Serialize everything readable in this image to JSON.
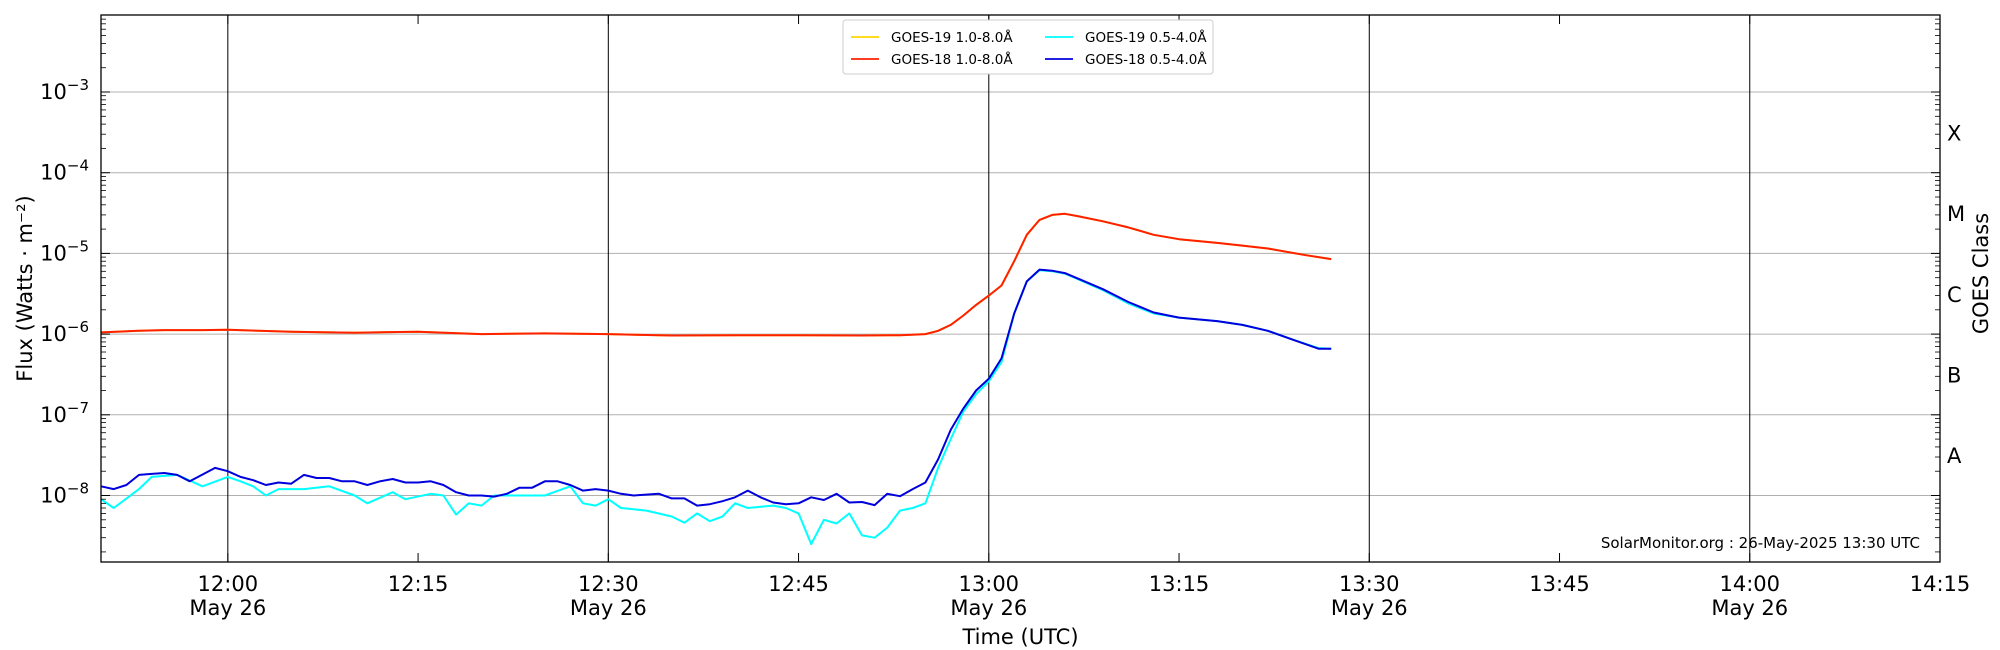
{
  "chart_data": {
    "type": "line",
    "title": "",
    "xlabel": "Time (UTC)",
    "ylabel": "Flux (Watts · m⁻²)",
    "ylabel_right": "GOES Class",
    "y_scale": "log",
    "ylim": [
      1.5e-09,
      0.009
    ],
    "xlim": [
      "11:50",
      "14:15"
    ],
    "x_ticks": [
      {
        "time": "12:00",
        "label": "12:00",
        "date": "May 26"
      },
      {
        "time": "12:15",
        "label": "12:15",
        "date": ""
      },
      {
        "time": "12:30",
        "label": "12:30",
        "date": "May 26"
      },
      {
        "time": "12:45",
        "label": "12:45",
        "date": ""
      },
      {
        "time": "13:00",
        "label": "13:00",
        "date": "May 26"
      },
      {
        "time": "13:15",
        "label": "13:15",
        "date": ""
      },
      {
        "time": "13:30",
        "label": "13:30",
        "date": "May 26"
      },
      {
        "time": "13:45",
        "label": "13:45",
        "date": ""
      },
      {
        "time": "14:00",
        "label": "14:00",
        "date": "May 26"
      },
      {
        "time": "14:15",
        "label": "14:15",
        "date": ""
      }
    ],
    "vertical_lines": [
      "12:00",
      "12:30",
      "13:00",
      "13:30",
      "14:00"
    ],
    "y_ticks": [
      {
        "value": 1e-08,
        "base": "10",
        "exp": "−8"
      },
      {
        "value": 1e-07,
        "base": "10",
        "exp": "−7"
      },
      {
        "value": 1e-06,
        "base": "10",
        "exp": "−6"
      },
      {
        "value": 1e-05,
        "base": "10",
        "exp": "−5"
      },
      {
        "value": 0.0001,
        "base": "10",
        "exp": "−4"
      },
      {
        "value": 0.001,
        "base": "10",
        "exp": "−3"
      }
    ],
    "goes_classes": [
      {
        "label": "A",
        "value": 3.16e-08
      },
      {
        "label": "B",
        "value": 3.16e-07
      },
      {
        "label": "C",
        "value": 3.16e-06
      },
      {
        "label": "M",
        "value": 3.16e-05
      },
      {
        "label": "X",
        "value": 0.000316
      }
    ],
    "grid": true,
    "legend_position": "top-center",
    "legend": [
      {
        "name": "GOES-19 1.0-8.0Å",
        "color": "#ffd700"
      },
      {
        "name": "GOES-18 1.0-8.0Å",
        "color": "#ff2000"
      },
      {
        "name": "GOES-19 0.5-4.0Å",
        "color": "#00ffff"
      },
      {
        "name": "GOES-18 0.5-4.0Å",
        "color": "#0000dd"
      }
    ],
    "annotation": "SolarMonitor.org : 26-May-2025 13:30 UTC",
    "series": [
      {
        "name": "GOES-19 1.0-8.0Å",
        "color": "#ffd700",
        "points": [
          [
            "11:50",
            1.05e-06
          ],
          [
            "11:53",
            1.1e-06
          ],
          [
            "11:55",
            1.12e-06
          ],
          [
            "11:58",
            1.12e-06
          ],
          [
            "12:00",
            1.13e-06
          ],
          [
            "12:05",
            1.07e-06
          ],
          [
            "12:10",
            1.04e-06
          ],
          [
            "12:15",
            1.07e-06
          ],
          [
            "12:20",
            1e-06
          ],
          [
            "12:25",
            1.02e-06
          ],
          [
            "12:30",
            1e-06
          ],
          [
            "12:35",
            9.6e-07
          ],
          [
            "12:40",
            9.7e-07
          ],
          [
            "12:45",
            9.7e-07
          ],
          [
            "12:50",
            9.6e-07
          ],
          [
            "12:53",
            9.7e-07
          ],
          [
            "12:55",
            1e-06
          ],
          [
            "12:56",
            1.1e-06
          ],
          [
            "12:57",
            1.3e-06
          ],
          [
            "12:58",
            1.7e-06
          ],
          [
            "12:59",
            2.3e-06
          ],
          [
            "13:00",
            3e-06
          ],
          [
            "13:01",
            4e-06
          ],
          [
            "13:02",
            8e-06
          ],
          [
            "13:03",
            1.7e-05
          ],
          [
            "13:04",
            2.6e-05
          ],
          [
            "13:05",
            3e-05
          ],
          [
            "13:06",
            3.1e-05
          ],
          [
            "13:07",
            2.9e-05
          ],
          [
            "13:09",
            2.5e-05
          ],
          [
            "13:11",
            2.1e-05
          ],
          [
            "13:13",
            1.7e-05
          ],
          [
            "13:15",
            1.5e-05
          ],
          [
            "13:18",
            1.35e-05
          ],
          [
            "13:20",
            1.25e-05
          ],
          [
            "13:22",
            1.15e-05
          ],
          [
            "13:25",
            9.5e-06
          ],
          [
            "13:27",
            8.5e-06
          ]
        ]
      },
      {
        "name": "GOES-18 1.0-8.0Å",
        "color": "#ff2000",
        "points": [
          [
            "11:50",
            1.05e-06
          ],
          [
            "11:53",
            1.1e-06
          ],
          [
            "11:55",
            1.12e-06
          ],
          [
            "11:58",
            1.12e-06
          ],
          [
            "12:00",
            1.13e-06
          ],
          [
            "12:05",
            1.07e-06
          ],
          [
            "12:10",
            1.04e-06
          ],
          [
            "12:15",
            1.07e-06
          ],
          [
            "12:20",
            1e-06
          ],
          [
            "12:25",
            1.02e-06
          ],
          [
            "12:30",
            1e-06
          ],
          [
            "12:35",
            9.6e-07
          ],
          [
            "12:40",
            9.7e-07
          ],
          [
            "12:45",
            9.7e-07
          ],
          [
            "12:50",
            9.6e-07
          ],
          [
            "12:53",
            9.7e-07
          ],
          [
            "12:55",
            1e-06
          ],
          [
            "12:56",
            1.1e-06
          ],
          [
            "12:57",
            1.3e-06
          ],
          [
            "12:58",
            1.7e-06
          ],
          [
            "12:59",
            2.3e-06
          ],
          [
            "13:00",
            3e-06
          ],
          [
            "13:01",
            4e-06
          ],
          [
            "13:02",
            8e-06
          ],
          [
            "13:03",
            1.7e-05
          ],
          [
            "13:04",
            2.6e-05
          ],
          [
            "13:05",
            3e-05
          ],
          [
            "13:06",
            3.1e-05
          ],
          [
            "13:07",
            2.9e-05
          ],
          [
            "13:09",
            2.5e-05
          ],
          [
            "13:11",
            2.1e-05
          ],
          [
            "13:13",
            1.7e-05
          ],
          [
            "13:15",
            1.5e-05
          ],
          [
            "13:18",
            1.35e-05
          ],
          [
            "13:20",
            1.25e-05
          ],
          [
            "13:22",
            1.15e-05
          ],
          [
            "13:25",
            9.5e-06
          ],
          [
            "13:27",
            8.5e-06
          ]
        ]
      },
      {
        "name": "GOES-19 0.5-4.0Å",
        "color": "#00ffff",
        "points": [
          [
            "11:50",
            9e-09
          ],
          [
            "11:51",
            7e-09
          ],
          [
            "11:53",
            1.2e-08
          ],
          [
            "11:54",
            1.7e-08
          ],
          [
            "11:56",
            1.8e-08
          ],
          [
            "11:58",
            1.3e-08
          ],
          [
            "12:00",
            1.7e-08
          ],
          [
            "12:01",
            1.5e-08
          ],
          [
            "12:02",
            1.3e-08
          ],
          [
            "12:03",
            1e-08
          ],
          [
            "12:04",
            1.2e-08
          ],
          [
            "12:06",
            1.2e-08
          ],
          [
            "12:08",
            1.3e-08
          ],
          [
            "12:10",
            1e-08
          ],
          [
            "12:11",
            8e-09
          ],
          [
            "12:13",
            1.1e-08
          ],
          [
            "12:14",
            9e-09
          ],
          [
            "12:16",
            1.05e-08
          ],
          [
            "12:17",
            1e-08
          ],
          [
            "12:18",
            5.8e-09
          ],
          [
            "12:19",
            8e-09
          ],
          [
            "12:20",
            7.5e-09
          ],
          [
            "12:21",
            1e-08
          ],
          [
            "12:23",
            1e-08
          ],
          [
            "12:25",
            1e-08
          ],
          [
            "12:27",
            1.3e-08
          ],
          [
            "12:28",
            8e-09
          ],
          [
            "12:29",
            7.5e-09
          ],
          [
            "12:30",
            9e-09
          ],
          [
            "12:31",
            7e-09
          ],
          [
            "12:33",
            6.5e-09
          ],
          [
            "12:35",
            5.5e-09
          ],
          [
            "12:36",
            4.6e-09
          ],
          [
            "12:37",
            6e-09
          ],
          [
            "12:38",
            4.8e-09
          ],
          [
            "12:39",
            5.5e-09
          ],
          [
            "12:40",
            8e-09
          ],
          [
            "12:41",
            7e-09
          ],
          [
            "12:43",
            7.5e-09
          ],
          [
            "12:44",
            7e-09
          ],
          [
            "12:45",
            6e-09
          ],
          [
            "12:46",
            2.5e-09
          ],
          [
            "12:47",
            5e-09
          ],
          [
            "12:48",
            4.5e-09
          ],
          [
            "12:49",
            6e-09
          ],
          [
            "12:50",
            3.2e-09
          ],
          [
            "12:51",
            3e-09
          ],
          [
            "12:52",
            4e-09
          ],
          [
            "12:53",
            6.5e-09
          ],
          [
            "12:54",
            7e-09
          ],
          [
            "12:55",
            8e-09
          ],
          [
            "12:56",
            2.2e-08
          ],
          [
            "12:57",
            5e-08
          ],
          [
            "12:58",
            1.1e-07
          ],
          [
            "12:59",
            1.8e-07
          ],
          [
            "13:00",
            2.6e-07
          ],
          [
            "13:01",
            4.5e-07
          ],
          [
            "13:02",
            1.8e-06
          ],
          [
            "13:03",
            4.5e-06
          ],
          [
            "13:04",
            6.2e-06
          ],
          [
            "13:05",
            6e-06
          ],
          [
            "13:06",
            5.6e-06
          ],
          [
            "13:07",
            4.8e-06
          ],
          [
            "13:09",
            3.5e-06
          ],
          [
            "13:11",
            2.4e-06
          ],
          [
            "13:13",
            1.8e-06
          ],
          [
            "13:15",
            1.6e-06
          ],
          [
            "13:18",
            1.45e-06
          ],
          [
            "13:20",
            1.3e-06
          ],
          [
            "13:22",
            1.1e-06
          ],
          [
            "13:24",
            8.5e-07
          ],
          [
            "13:26",
            6.7e-07
          ],
          [
            "13:27",
            6.6e-07
          ]
        ]
      },
      {
        "name": "GOES-18 0.5-4.0Å",
        "color": "#0000dd",
        "points": [
          [
            "11:50",
            1.3e-08
          ],
          [
            "11:51",
            1.2e-08
          ],
          [
            "11:52",
            1.35e-08
          ],
          [
            "11:53",
            1.8e-08
          ],
          [
            "11:54",
            1.85e-08
          ],
          [
            "11:55",
            1.9e-08
          ],
          [
            "11:56",
            1.8e-08
          ],
          [
            "11:57",
            1.5e-08
          ],
          [
            "11:59",
            2.2e-08
          ],
          [
            "12:00",
            2e-08
          ],
          [
            "12:01",
            1.7e-08
          ],
          [
            "12:02",
            1.55e-08
          ],
          [
            "12:03",
            1.35e-08
          ],
          [
            "12:04",
            1.45e-08
          ],
          [
            "12:05",
            1.4e-08
          ],
          [
            "12:06",
            1.8e-08
          ],
          [
            "12:07",
            1.65e-08
          ],
          [
            "12:08",
            1.65e-08
          ],
          [
            "12:09",
            1.5e-08
          ],
          [
            "12:10",
            1.5e-08
          ],
          [
            "12:11",
            1.35e-08
          ],
          [
            "12:12",
            1.5e-08
          ],
          [
            "12:13",
            1.6e-08
          ],
          [
            "12:14",
            1.45e-08
          ],
          [
            "12:15",
            1.45e-08
          ],
          [
            "12:16",
            1.5e-08
          ],
          [
            "12:17",
            1.35e-08
          ],
          [
            "12:18",
            1.1e-08
          ],
          [
            "12:19",
            1e-08
          ],
          [
            "12:20",
            1e-08
          ],
          [
            "12:21",
            9.7e-09
          ],
          [
            "12:22",
            1.05e-08
          ],
          [
            "12:23",
            1.25e-08
          ],
          [
            "12:24",
            1.25e-08
          ],
          [
            "12:25",
            1.5e-08
          ],
          [
            "12:26",
            1.5e-08
          ],
          [
            "12:27",
            1.35e-08
          ],
          [
            "12:28",
            1.15e-08
          ],
          [
            "12:29",
            1.2e-08
          ],
          [
            "12:30",
            1.15e-08
          ],
          [
            "12:31",
            1.05e-08
          ],
          [
            "12:32",
            1e-08
          ],
          [
            "12:34",
            1.05e-08
          ],
          [
            "12:35",
            9.2e-09
          ],
          [
            "12:36",
            9.2e-09
          ],
          [
            "12:37",
            7.5e-09
          ],
          [
            "12:38",
            7.8e-09
          ],
          [
            "12:39",
            8.5e-09
          ],
          [
            "12:40",
            9.5e-09
          ],
          [
            "12:41",
            1.15e-08
          ],
          [
            "12:42",
            9.5e-09
          ],
          [
            "12:43",
            8.2e-09
          ],
          [
            "12:44",
            7.8e-09
          ],
          [
            "12:45",
            8e-09
          ],
          [
            "12:46",
            9.5e-09
          ],
          [
            "12:47",
            8.8e-09
          ],
          [
            "12:48",
            1.05e-08
          ],
          [
            "12:49",
            8.2e-09
          ],
          [
            "12:50",
            8.3e-09
          ],
          [
            "12:51",
            7.6e-09
          ],
          [
            "12:52",
            1.05e-08
          ],
          [
            "12:53",
            9.8e-09
          ],
          [
            "12:54",
            1.2e-08
          ],
          [
            "12:55",
            1.45e-08
          ],
          [
            "12:56",
            2.8e-08
          ],
          [
            "12:57",
            6.5e-08
          ],
          [
            "12:58",
            1.2e-07
          ],
          [
            "12:59",
            2e-07
          ],
          [
            "13:00",
            2.8e-07
          ],
          [
            "13:01",
            5e-07
          ],
          [
            "13:02",
            1.8e-06
          ],
          [
            "13:03",
            4.5e-06
          ],
          [
            "13:04",
            6.3e-06
          ],
          [
            "13:05",
            6.1e-06
          ],
          [
            "13:06",
            5.7e-06
          ],
          [
            "13:07",
            4.9e-06
          ],
          [
            "13:09",
            3.6e-06
          ],
          [
            "13:11",
            2.5e-06
          ],
          [
            "13:13",
            1.85e-06
          ],
          [
            "13:15",
            1.6e-06
          ],
          [
            "13:18",
            1.45e-06
          ],
          [
            "13:20",
            1.3e-06
          ],
          [
            "13:22",
            1.1e-06
          ],
          [
            "13:24",
            8.5e-07
          ],
          [
            "13:26",
            6.6e-07
          ],
          [
            "13:27",
            6.6e-07
          ]
        ]
      }
    ]
  }
}
